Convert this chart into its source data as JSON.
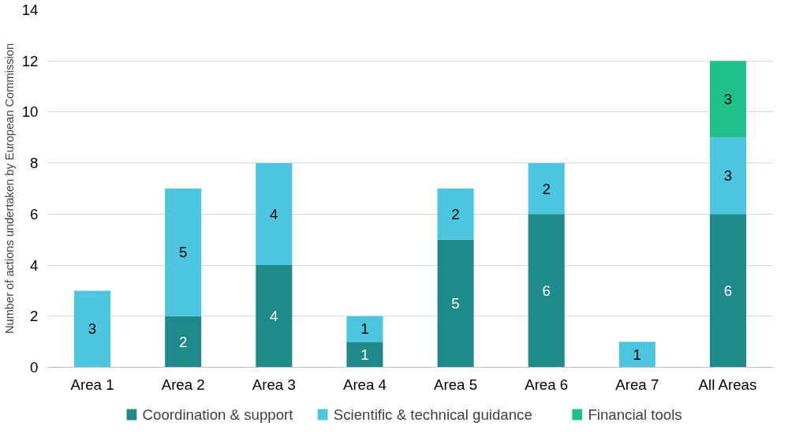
{
  "chart_data": {
    "type": "bar",
    "stacked": true,
    "ylabel": "Number of actions undertaken by European Commission",
    "categories": [
      "Area 1",
      "Area 2",
      "Area 3",
      "Area 4",
      "Area 5",
      "Area 6",
      "Area 7",
      "All Areas"
    ],
    "series": [
      {
        "name": "Coordination & support",
        "color": "#1f8a8c",
        "values": [
          null,
          2,
          4,
          1,
          5,
          6,
          null,
          6
        ]
      },
      {
        "name": "Scientific & technical guidance",
        "color": "#4cc5df",
        "values": [
          3,
          5,
          4,
          1,
          2,
          2,
          1,
          3
        ]
      },
      {
        "name": "Financial tools",
        "color": "#20c08b",
        "values": [
          null,
          null,
          null,
          null,
          null,
          null,
          null,
          3
        ]
      }
    ],
    "ylim": [
      0,
      14
    ],
    "yticks": [
      0,
      2,
      4,
      6,
      8,
      10,
      12,
      14
    ],
    "grid": "y",
    "legend": "bottom",
    "data_labels": true
  }
}
